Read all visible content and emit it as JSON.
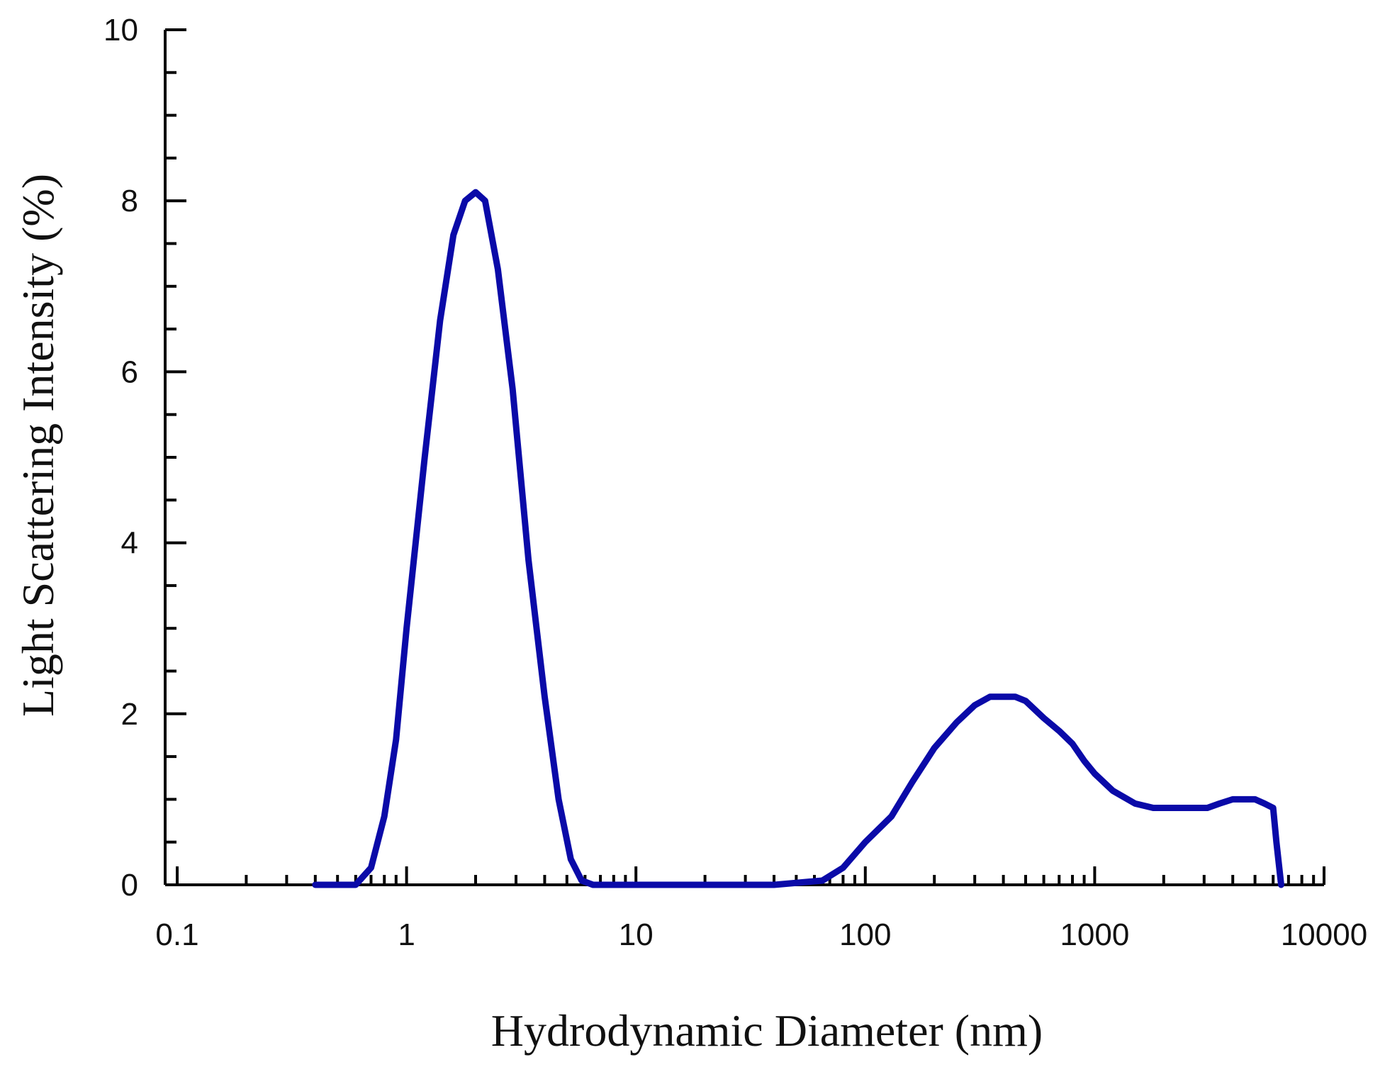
{
  "chart_data": {
    "type": "line",
    "xlabel": "Hydrodynamic Diameter (nm)",
    "ylabel": "Light Scattering Intensity (%)",
    "x_scale": "log",
    "xlim": [
      0.1,
      10000
    ],
    "ylim": [
      0,
      10
    ],
    "x_ticks": [
      0.1,
      1,
      10,
      100,
      1000,
      10000
    ],
    "x_tick_labels": [
      "0.1",
      "1",
      "10",
      "100",
      "1000",
      "10000"
    ],
    "y_ticks": [
      0,
      2,
      4,
      6,
      8,
      10
    ],
    "y_tick_labels": [
      "0",
      "2",
      "4",
      "6",
      "8",
      "10"
    ],
    "grid": false,
    "line_color": "#0a0aa8",
    "series": [
      {
        "x": [
          0.4,
          0.6,
          0.7,
          0.8,
          0.9,
          1.0,
          1.2,
          1.4,
          1.6,
          1.8,
          2.0,
          2.2,
          2.5,
          2.9,
          3.4,
          4.0,
          4.6,
          5.2,
          5.8,
          6.5,
          10,
          20,
          40,
          65,
          80,
          100,
          130,
          160,
          200,
          250,
          300,
          350,
          400,
          450,
          500,
          600,
          700,
          800,
          900,
          1000,
          1200,
          1500,
          1800,
          2200,
          2700,
          3100,
          3500,
          4000,
          4500,
          5000,
          5500,
          6000,
          6200,
          6500
        ],
        "y": [
          0,
          0,
          0.2,
          0.8,
          1.7,
          3.0,
          5.0,
          6.6,
          7.6,
          8.0,
          8.1,
          8.0,
          7.2,
          5.8,
          3.8,
          2.2,
          1.0,
          0.3,
          0.05,
          0,
          0,
          0,
          0,
          0.05,
          0.2,
          0.5,
          0.8,
          1.2,
          1.6,
          1.9,
          2.1,
          2.2,
          2.2,
          2.2,
          2.15,
          1.95,
          1.8,
          1.65,
          1.45,
          1.3,
          1.1,
          0.95,
          0.9,
          0.9,
          0.9,
          0.9,
          0.95,
          1.0,
          1.0,
          1.0,
          0.95,
          0.9,
          0.5,
          0
        ]
      }
    ]
  }
}
